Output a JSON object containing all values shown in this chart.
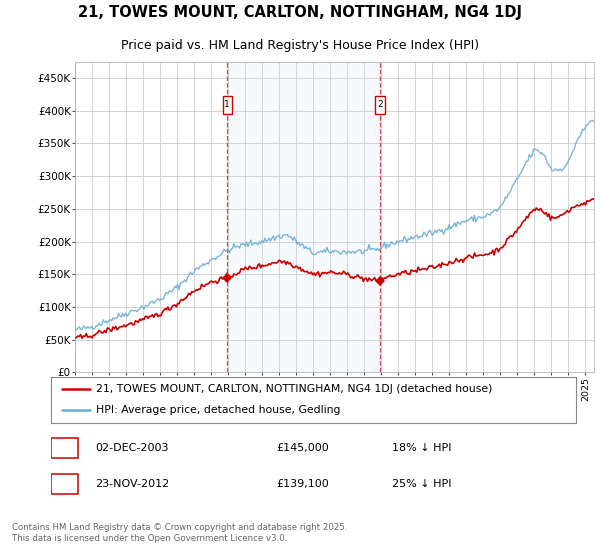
{
  "title": "21, TOWES MOUNT, CARLTON, NOTTINGHAM, NG4 1DJ",
  "subtitle": "Price paid vs. HM Land Registry's House Price Index (HPI)",
  "ylabel_ticks": [
    "£0",
    "£50K",
    "£100K",
    "£150K",
    "£200K",
    "£250K",
    "£300K",
    "£350K",
    "£400K",
    "£450K"
  ],
  "ytick_values": [
    0,
    50000,
    100000,
    150000,
    200000,
    250000,
    300000,
    350000,
    400000,
    450000
  ],
  "ylim": [
    0,
    475000
  ],
  "xlim_start": 1995.0,
  "xlim_end": 2025.5,
  "hpi_color": "#6baed6",
  "price_color": "#cc0000",
  "marker1_x": 2003.92,
  "marker1_y": 145000,
  "marker2_x": 2012.9,
  "marker2_y": 139100,
  "marker1_label": "02-DEC-2003",
  "marker1_price": "£145,000",
  "marker1_note": "18% ↓ HPI",
  "marker2_label": "23-NOV-2012",
  "marker2_price": "£139,100",
  "marker2_note": "25% ↓ HPI",
  "legend_line1": "21, TOWES MOUNT, CARLTON, NOTTINGHAM, NG4 1DJ (detached house)",
  "legend_line2": "HPI: Average price, detached house, Gedling",
  "footer": "Contains HM Land Registry data © Crown copyright and database right 2025.\nThis data is licensed under the Open Government Licence v3.0.",
  "bg_shade_start": 2003.92,
  "bg_shade_end": 2012.9,
  "title_fontsize": 10.5,
  "subtitle_fontsize": 9,
  "axis_label_fontsize": 7.5,
  "legend_fontsize": 8,
  "annotation_fontsize": 8
}
